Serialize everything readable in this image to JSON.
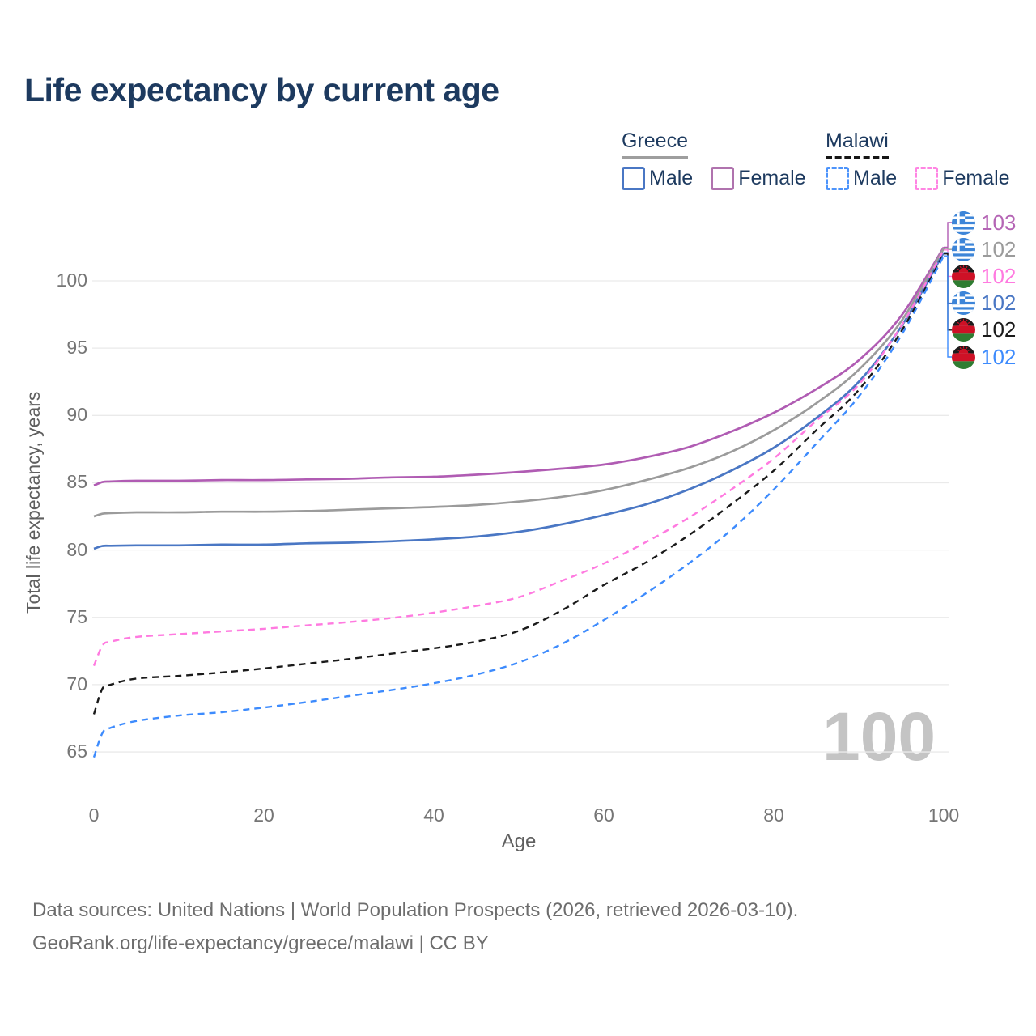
{
  "title": "Life expectancy by current age",
  "legend": {
    "groups": [
      {
        "country": "Greece",
        "line_style": "solid",
        "swatch_color": "#9e9e9e",
        "items": [
          {
            "label": "Male",
            "color": "#4a77c4"
          },
          {
            "label": "Female",
            "color": "#b073ae"
          }
        ]
      },
      {
        "country": "Malawi",
        "line_style": "dashed",
        "swatch_color": "#161616",
        "items": [
          {
            "label": "Male",
            "color": "#4d94fb"
          },
          {
            "label": "Female",
            "color": "#ff85e3"
          }
        ]
      }
    ]
  },
  "chart_data": {
    "type": "line",
    "title": "Life expectancy by current age",
    "xlabel": "Age",
    "ylabel": "Total life expectancy, years",
    "xlim": [
      0,
      100
    ],
    "ylim": [
      63,
      104
    ],
    "xticks": [
      0,
      20,
      40,
      60,
      80,
      100
    ],
    "yticks": [
      65,
      70,
      75,
      80,
      85,
      90,
      95,
      100
    ],
    "grid": "horizontal",
    "legend_position": "top-right",
    "watermark": "100",
    "x": [
      0,
      1,
      2,
      5,
      10,
      15,
      20,
      25,
      30,
      35,
      40,
      45,
      50,
      55,
      60,
      65,
      70,
      75,
      80,
      85,
      90,
      95,
      100
    ],
    "series": [
      {
        "id": "greece-female",
        "name": "Greece Female",
        "country": "Greece",
        "sex": "Female",
        "color": "#b05cb3",
        "dash": false,
        "values": [
          84.8,
          85.05,
          85.1,
          85.15,
          85.15,
          85.2,
          85.2,
          85.25,
          85.3,
          85.4,
          85.45,
          85.6,
          85.8,
          86.05,
          86.35,
          86.9,
          87.65,
          88.8,
          90.2,
          91.95,
          94.1,
          97.4,
          102.5
        ]
      },
      {
        "id": "greece-all",
        "name": "Greece",
        "country": "Greece",
        "sex": "Both",
        "color": "#9b9b9b",
        "dash": false,
        "values": [
          82.5,
          82.7,
          82.75,
          82.8,
          82.8,
          82.85,
          82.85,
          82.9,
          83.0,
          83.1,
          83.2,
          83.35,
          83.6,
          83.95,
          84.45,
          85.2,
          86.1,
          87.3,
          88.9,
          90.9,
          93.4,
          97.0,
          102.4
        ]
      },
      {
        "id": "greece-male",
        "name": "Greece Male",
        "country": "Greece",
        "sex": "Male",
        "color": "#4a77c4",
        "dash": false,
        "values": [
          80.1,
          80.3,
          80.32,
          80.35,
          80.35,
          80.4,
          80.4,
          80.5,
          80.55,
          80.65,
          80.8,
          81.0,
          81.35,
          81.9,
          82.6,
          83.4,
          84.5,
          85.9,
          87.6,
          89.8,
          92.5,
          96.6,
          102.1
        ]
      },
      {
        "id": "malawi-female",
        "name": "Malawi Female",
        "country": "Malawi",
        "sex": "Female",
        "color": "#ff7ae0",
        "dash": true,
        "values": [
          71.4,
          72.9,
          73.2,
          73.55,
          73.75,
          73.95,
          74.15,
          74.4,
          74.65,
          74.95,
          75.35,
          75.85,
          76.5,
          77.7,
          79.0,
          80.6,
          82.4,
          84.5,
          86.8,
          89.6,
          92.3,
          96.65,
          102.3
        ]
      },
      {
        "id": "malawi-all",
        "name": "Malawi",
        "country": "Malawi",
        "sex": "Both",
        "color": "#1a1a1a",
        "dash": true,
        "values": [
          67.8,
          69.7,
          70.0,
          70.45,
          70.65,
          70.9,
          71.2,
          71.55,
          71.9,
          72.3,
          72.7,
          73.2,
          74.0,
          75.5,
          77.4,
          79.1,
          81.1,
          83.4,
          85.9,
          88.9,
          91.9,
          96.25,
          102.0
        ]
      },
      {
        "id": "malawi-male",
        "name": "Malawi Male",
        "country": "Malawi",
        "sex": "Male",
        "color": "#3d8bfd",
        "dash": true,
        "values": [
          64.6,
          66.4,
          66.8,
          67.3,
          67.7,
          67.95,
          68.3,
          68.7,
          69.15,
          69.6,
          70.1,
          70.75,
          71.65,
          73.0,
          74.8,
          76.8,
          79.0,
          81.5,
          84.5,
          87.9,
          91.4,
          95.95,
          101.85
        ]
      }
    ]
  },
  "end_labels": [
    {
      "flag": "greece",
      "value": "103",
      "color": "#b565b5",
      "series_index": 0
    },
    {
      "flag": "greece",
      "value": "102",
      "color": "#9b9b9b",
      "series_index": 1
    },
    {
      "flag": "malawi",
      "value": "102",
      "color": "#ff7ae0",
      "series_index": 3
    },
    {
      "flag": "greece",
      "value": "102",
      "color": "#4a77c4",
      "series_index": 2
    },
    {
      "flag": "malawi",
      "value": "102",
      "color": "#1a1a1a",
      "series_index": 4
    },
    {
      "flag": "malawi",
      "value": "102",
      "color": "#3d8bfd",
      "series_index": 5
    }
  ],
  "footer": {
    "line1": "Data sources: United Nations | World Population Prospects (2026, retrieved 2026-03-10).",
    "line2": "GeoRank.org/life-expectancy/greece/malawi | CC BY"
  }
}
